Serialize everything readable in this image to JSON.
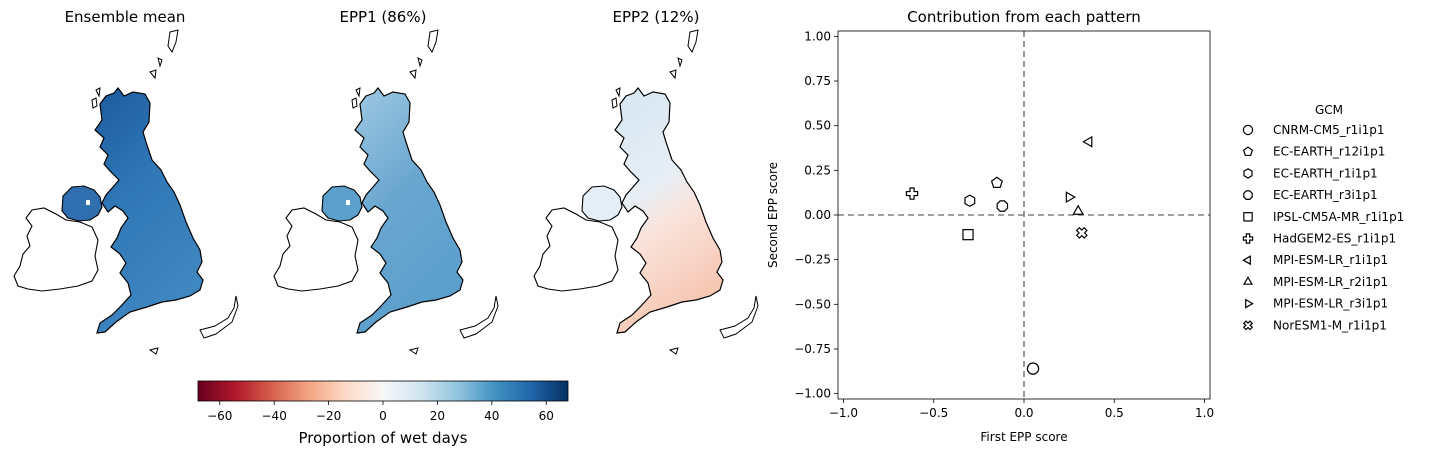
{
  "maps": {
    "panels": [
      {
        "title": "Ensemble mean",
        "id": "mean"
      },
      {
        "title": "EPP1 (86%)",
        "id": "epp1"
      },
      {
        "title": "EPP2 (12%)",
        "id": "epp2"
      }
    ],
    "colorbar": {
      "label": "Proportion of wet days",
      "ticks": [
        "−60",
        "−40",
        "−20",
        "0",
        "20",
        "40",
        "60"
      ],
      "tick_values": [
        -60,
        -40,
        -20,
        0,
        20,
        40,
        60
      ],
      "range": [
        -68,
        68
      ],
      "colormap": "RdBu"
    }
  },
  "chart_data": {
    "type": "scatter",
    "title": "Contribution from each pattern",
    "xlabel": "First EPP score",
    "ylabel": "Second EPP score",
    "xlim": [
      -1.03,
      1.03
    ],
    "ylim": [
      -1.03,
      1.03
    ],
    "xticks": [
      "−1.0",
      "−0.5",
      "0.0",
      "0.5",
      "1.0"
    ],
    "xtick_values": [
      -1.0,
      -0.5,
      0.0,
      0.5,
      1.0
    ],
    "yticks": [
      "−1.00",
      "−0.75",
      "−0.50",
      "−0.25",
      "0.00",
      "0.25",
      "0.50",
      "0.75",
      "1.00"
    ],
    "ytick_values": [
      -1.0,
      -0.75,
      -0.5,
      -0.25,
      0.0,
      0.25,
      0.5,
      0.75,
      1.0
    ],
    "reference_lines": {
      "x": 0,
      "y": 0,
      "style": "dashed",
      "color": "#808080"
    },
    "legend_title": "GCM",
    "legend_position": "right",
    "points": [
      {
        "name": "CNRM-CM5_r1i1p1",
        "marker": "circle",
        "x": 0.05,
        "y": -0.86
      },
      {
        "name": "EC-EARTH_r12i1p1",
        "marker": "pentagon",
        "x": -0.15,
        "y": 0.18
      },
      {
        "name": "EC-EARTH_r1i1p1",
        "marker": "hexagon",
        "x": -0.3,
        "y": 0.08
      },
      {
        "name": "EC-EARTH_r3i1p1",
        "marker": "octagon",
        "x": -0.12,
        "y": 0.05
      },
      {
        "name": "IPSL-CM5A-MR_r1i1p1",
        "marker": "square",
        "x": -0.31,
        "y": -0.11
      },
      {
        "name": "HadGEM2-ES_r1i1p1",
        "marker": "plus",
        "x": -0.62,
        "y": 0.12
      },
      {
        "name": "MPI-ESM-LR_r1i1p1",
        "marker": "triangle-left",
        "x": 0.36,
        "y": 0.41
      },
      {
        "name": "MPI-ESM-LR_r2i1p1",
        "marker": "triangle-up",
        "x": 0.3,
        "y": 0.02
      },
      {
        "name": "MPI-ESM-LR_r3i1p1",
        "marker": "triangle-right",
        "x": 0.25,
        "y": 0.1
      },
      {
        "name": "NorESM1-M_r1i1p1",
        "marker": "x-filled",
        "x": 0.32,
        "y": -0.1
      }
    ]
  }
}
